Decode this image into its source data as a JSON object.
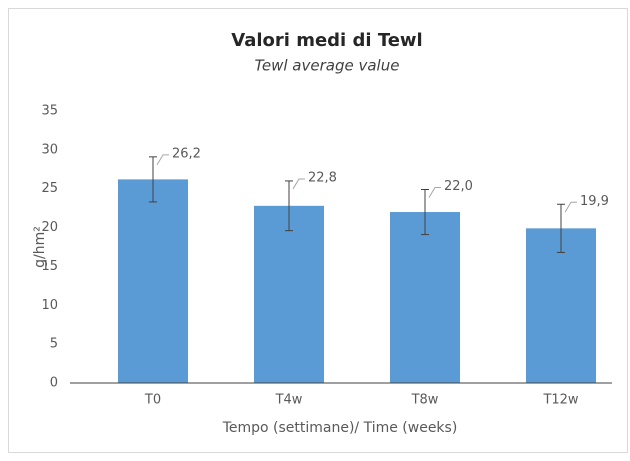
{
  "chart_data": {
    "type": "bar",
    "title": "Valori medi di Tewl",
    "subtitle": "Tewl average value",
    "x_label": "Tempo (settimane)/ Time (weeks)",
    "y_label": "g/hm²",
    "categories": [
      "T0",
      "T4w",
      "T8w",
      "T12w"
    ],
    "values": [
      26.2,
      22.8,
      22.0,
      19.9
    ],
    "value_labels": [
      "26,2",
      "22,8",
      "22,0",
      "19,9"
    ],
    "errors": [
      2.9,
      3.2,
      2.9,
      3.1
    ],
    "color": "#5b9bd5",
    "ylim": [
      0,
      35
    ],
    "yticks": [
      0,
      5,
      10,
      15,
      20,
      25,
      30,
      35
    ],
    "grid": false
  }
}
